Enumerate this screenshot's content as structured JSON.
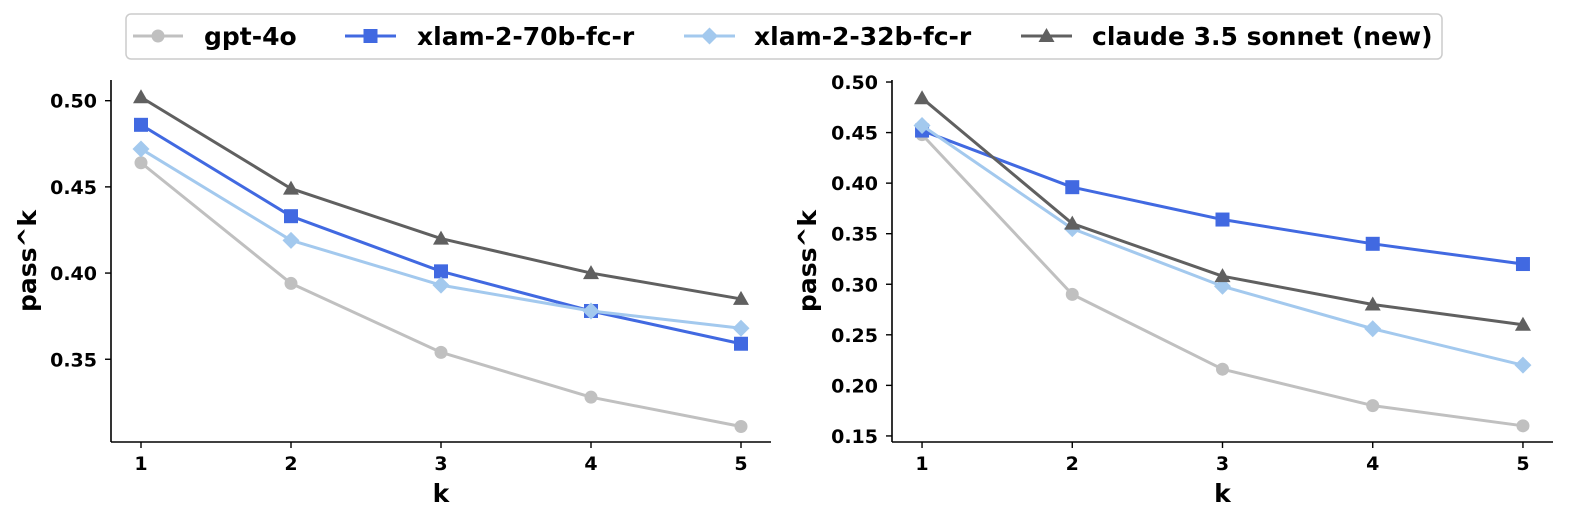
{
  "legend": {
    "location": "top-center",
    "entries": [
      "gpt-4o",
      "xlam-2-70b-fc-r",
      "xlam-2-32b-fc-r",
      "claude 3.5 sonnet (new)"
    ]
  },
  "styles": {
    "gpt-4o": {
      "color": "#c0c0c0",
      "marker": "circle"
    },
    "xlam-2-70b-fc-r": {
      "color": "#4169e1",
      "marker": "square"
    },
    "xlam-2-32b-fc-r": {
      "color": "#a3c9ee",
      "marker": "diamond"
    },
    "claude 3.5 sonnet (new)": {
      "color": "#606060",
      "marker": "triangle"
    }
  },
  "chart_data": [
    {
      "type": "line",
      "xlabel": "k",
      "ylabel": "pass^k",
      "x": [
        1,
        2,
        3,
        4,
        5
      ],
      "xticks": [
        "1",
        "2",
        "3",
        "4",
        "5"
      ],
      "xlim": [
        0.8,
        5.2
      ],
      "ylim": [
        0.302,
        0.512
      ],
      "yticks": [
        "0.35",
        "0.40",
        "0.45",
        "0.50"
      ],
      "grid": false,
      "series": [
        {
          "name": "gpt-4o",
          "values": [
            0.464,
            0.394,
            0.354,
            0.328,
            0.311
          ]
        },
        {
          "name": "xlam-2-70b-fc-r",
          "values": [
            0.486,
            0.433,
            0.401,
            0.378,
            0.359
          ]
        },
        {
          "name": "xlam-2-32b-fc-r",
          "values": [
            0.472,
            0.419,
            0.393,
            0.378,
            0.368
          ]
        },
        {
          "name": "claude 3.5 sonnet (new)",
          "values": [
            0.502,
            0.449,
            0.42,
            0.4,
            0.385
          ]
        }
      ]
    },
    {
      "type": "line",
      "xlabel": "k",
      "ylabel": "pass^k",
      "x": [
        1,
        2,
        3,
        4,
        5
      ],
      "xticks": [
        "1",
        "2",
        "3",
        "4",
        "5"
      ],
      "xlim": [
        0.8,
        5.2
      ],
      "ylim": [
        0.144,
        0.502
      ],
      "yticks": [
        "0.15",
        "0.20",
        "0.25",
        "0.30",
        "0.35",
        "0.40",
        "0.45",
        "0.50"
      ],
      "grid": false,
      "series": [
        {
          "name": "gpt-4o",
          "values": [
            0.448,
            0.29,
            0.216,
            0.18,
            0.16
          ]
        },
        {
          "name": "xlam-2-70b-fc-r",
          "values": [
            0.452,
            0.396,
            0.364,
            0.34,
            0.32
          ]
        },
        {
          "name": "xlam-2-32b-fc-r",
          "values": [
            0.457,
            0.355,
            0.298,
            0.256,
            0.22
          ]
        },
        {
          "name": "claude 3.5 sonnet (new)",
          "values": [
            0.484,
            0.36,
            0.308,
            0.28,
            0.26
          ]
        }
      ]
    }
  ]
}
